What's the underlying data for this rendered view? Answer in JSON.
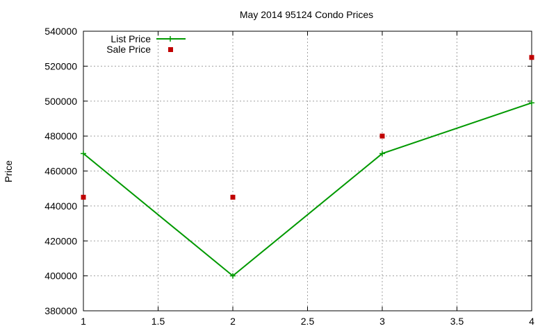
{
  "chart_data": {
    "type": "line",
    "title": "May 2014 95124 Condo Prices",
    "xlabel": "",
    "ylabel": "Price",
    "xlim": [
      1,
      4
    ],
    "ylim": [
      380000,
      540000
    ],
    "xticks": [
      "1",
      "1.5",
      "2",
      "2.5",
      "3",
      "3.5",
      "4"
    ],
    "yticks": [
      "380000",
      "400000",
      "420000",
      "440000",
      "460000",
      "480000",
      "500000",
      "520000",
      "540000"
    ],
    "grid": true,
    "legend_position": "top-left",
    "series": [
      {
        "name": "List Price",
        "style": "line+cross",
        "color": "#009900",
        "x": [
          1,
          2,
          3,
          4
        ],
        "y": [
          470000,
          400000,
          470000,
          499000
        ]
      },
      {
        "name": "Sale Price",
        "style": "square points",
        "color": "#c00000",
        "x": [
          1,
          2,
          3,
          4
        ],
        "y": [
          445000,
          445000,
          480000,
          525000
        ]
      }
    ]
  }
}
